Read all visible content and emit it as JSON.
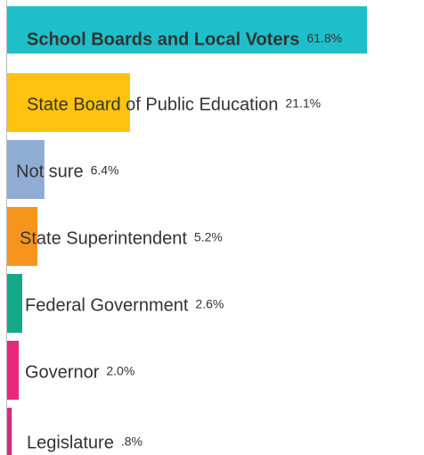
{
  "chart_data": {
    "type": "bar",
    "orientation": "horizontal",
    "categories": [
      "School Boards and Local Voters",
      "State Board of Public Education",
      "Not sure",
      "State Superintendent",
      "Federal Government",
      "Governor",
      "Legislature"
    ],
    "values": [
      61.8,
      21.1,
      6.4,
      5.2,
      2.6,
      2.0,
      0.8
    ],
    "value_labels": [
      "61.8%",
      "21.1%",
      "6.4%",
      "5.2%",
      "2.6%",
      "2.0%",
      ".8%"
    ],
    "colors": [
      "#1fbfca",
      "#ffc20e",
      "#8fadd3",
      "#f7941d",
      "#14a98b",
      "#e8287a",
      "#d62c7d"
    ]
  }
}
